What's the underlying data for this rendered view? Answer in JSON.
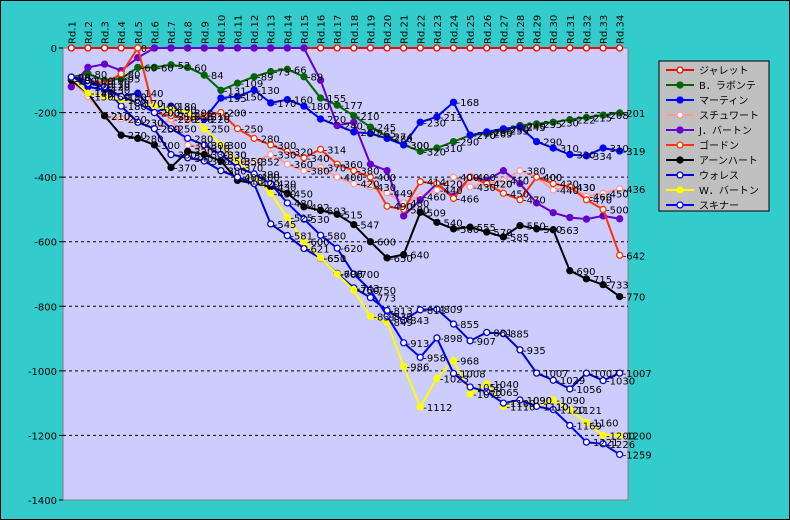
{
  "chart_data": {
    "type": "line",
    "title": "",
    "xlabel": "",
    "ylabel": "",
    "ylim": [
      -1400,
      0
    ],
    "yticks": [
      0,
      -200,
      -400,
      -600,
      -800,
      -1000,
      -1200,
      -1400
    ],
    "grid": "horizontal dashed",
    "legend_position": "right",
    "categories": [
      "Rd.1",
      "Rd.2",
      "Rd.3",
      "Rd.4",
      "Rd.5",
      "Rd.6",
      "Rd.7",
      "Rd.8",
      "Rd.9",
      "Rd.10",
      "Rd.11",
      "Rd.12",
      "Rd.13",
      "Rd.14",
      "Rd.15",
      "Rd.16",
      "Rd.17",
      "Rd.18",
      "Rd.19",
      "Rd.20",
      "Rd.21",
      "Rd.22",
      "Rd.23",
      "Rd.24",
      "Rd.25",
      "Rd.26",
      "Rd.27",
      "Rd.28",
      "Rd.29",
      "Rd.30",
      "Rd.31",
      "Rd.32",
      "Rd.33",
      "Rd.34"
    ],
    "series": [
      {
        "name": "ジャレット",
        "color": "#FF0000",
        "marker": "#FFFFFF",
        "values": [
          0,
          0,
          0,
          0,
          0,
          0,
          0,
          0,
          0,
          0,
          0,
          0,
          0,
          0,
          0,
          0,
          0,
          0,
          0,
          0,
          0,
          0,
          0,
          0,
          0,
          0,
          0,
          0,
          0,
          0,
          0,
          0,
          0,
          0
        ],
        "labels": false
      },
      {
        "name": "B．ラボンテ",
        "color": "#006600",
        "marker": "#006600",
        "values": [
          -90,
          -80,
          -100,
          -95,
          -60,
          -60,
          -52,
          -60,
          -84,
          -131,
          -109,
          -89,
          -73,
          -66,
          -89,
          -155,
          -177,
          -210,
          -245,
          -274,
          -300,
          -320,
          -310,
          -290,
          -270,
          -265,
          -255,
          -240,
          -235,
          -230,
          -222,
          -215,
          -208,
          -201
        ],
        "labels": true
      },
      {
        "name": "マーティン",
        "color": "#0000FF",
        "marker": "#0000FF",
        "values": [
          -90,
          -120,
          -130,
          -150,
          -140,
          -200,
          -180,
          -210,
          -220,
          -155,
          -150,
          -130,
          -170,
          -160,
          -180,
          -220,
          -240,
          -260,
          -265,
          -280,
          -300,
          -230,
          -213,
          -168,
          -270,
          -260,
          -250,
          -245,
          -290,
          -310,
          -330,
          -334,
          -310,
          -319
        ],
        "labels": true
      },
      {
        "name": "スチュワート",
        "color": "#FF9999",
        "marker": "#FFFFFF",
        "values": [
          -100,
          -150,
          -210,
          -220,
          -230,
          -250,
          -220,
          -300,
          -310,
          -330,
          -350,
          -352,
          -330,
          -360,
          -380,
          -370,
          -400,
          -420,
          -430,
          -449,
          -480,
          -460,
          -440,
          -400,
          -430,
          -420,
          -410,
          -380,
          -400,
          -440,
          -430,
          -460,
          -450,
          -436
        ],
        "labels": true
      },
      {
        "name": "J．バートン",
        "color": "#6600CC",
        "marker": "#6600CC",
        "values": [
          -120,
          -60,
          -50,
          -70,
          -30,
          0,
          0,
          0,
          0,
          0,
          0,
          0,
          0,
          0,
          0,
          -100,
          -240,
          -230,
          -360,
          -380,
          -520,
          -470,
          -420,
          -460,
          -400,
          -410,
          -380,
          -420,
          -480,
          -510,
          -525,
          -530,
          -520,
          -529
        ],
        "labels": false
      },
      {
        "name": "ゴードン",
        "color": "#FF3300",
        "marker": "#FFFFFF",
        "values": [
          -90,
          -100,
          -110,
          -80,
          0,
          -200,
          -210,
          -220,
          -210,
          -200,
          -250,
          -280,
          -300,
          -320,
          -340,
          -314,
          -360,
          -380,
          -400,
          -490,
          -500,
          -414,
          -420,
          -466,
          -400,
          -420,
          -450,
          -470,
          -400,
          -420,
          -430,
          -470,
          -500,
          -642
        ],
        "labels": true
      },
      {
        "name": "アーンハート",
        "color": "#000000",
        "marker": "#000000",
        "values": [
          -100,
          -140,
          -210,
          -270,
          -280,
          -300,
          -370,
          -320,
          -330,
          -350,
          -410,
          -420,
          -430,
          -450,
          -492,
          -503,
          -515,
          -547,
          -600,
          -650,
          -640,
          -509,
          -540,
          -560,
          -555,
          -570,
          -585,
          -550,
          -560,
          -563,
          -690,
          -715,
          -733,
          -770
        ],
        "labels": true
      },
      {
        "name": "ウォレス",
        "color": "#0000CC",
        "marker": "#FFFFFF",
        "values": [
          -90,
          -110,
          -120,
          -180,
          -230,
          -250,
          -330,
          -340,
          -350,
          -380,
          -400,
          -420,
          -545,
          -581,
          -621,
          -651,
          -698,
          -743,
          -773,
          -813,
          -843,
          -811,
          -809,
          -855,
          -907,
          -881,
          -885,
          -935,
          -1007,
          -1029,
          -1056,
          -1007,
          -1030,
          -1007
        ],
        "labels": true
      },
      {
        "name": "W．バートン",
        "color": "#FFFF00",
        "marker": "#FFFF00",
        "values": [
          -90,
          -140,
          -150,
          -160,
          -170,
          -180,
          -190,
          -200,
          -250,
          -300,
          -350,
          -400,
          -450,
          -525,
          -600,
          -650,
          -700,
          -750,
          -831,
          -849,
          -986,
          -1112,
          -1023,
          -968,
          -1072,
          -1040,
          -1110,
          -1090,
          -1110,
          -1090,
          -1121,
          -1160,
          -1200,
          -1200
        ],
        "labels": true
      },
      {
        "name": "スキナー",
        "color": "#0000FF",
        "marker": "#FFFFFF",
        "values": [
          -90,
          -100,
          -120,
          -150,
          -170,
          -200,
          -250,
          -280,
          -300,
          -330,
          -370,
          -390,
          -420,
          -480,
          -530,
          -580,
          -620,
          -700,
          -750,
          -830,
          -913,
          -958,
          -898,
          -1008,
          -1050,
          -1065,
          -1100,
          -1090,
          -1110,
          -1120,
          -1169,
          -1221,
          -1226,
          -1259
        ],
        "labels": true
      }
    ]
  }
}
